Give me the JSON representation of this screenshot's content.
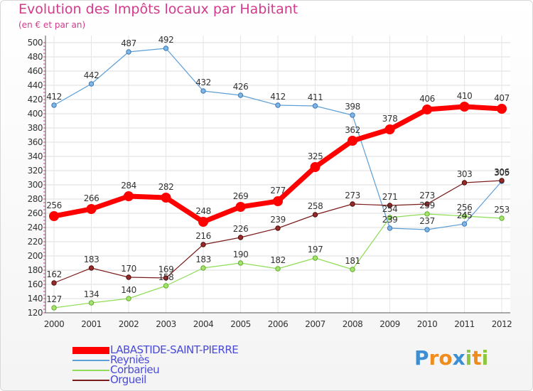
{
  "chart_data": {
    "type": "line",
    "title": "Evolution des Impôts locaux par Habitant",
    "subtitle": "(en € et par an)",
    "xlabel": "",
    "ylabel": "",
    "x": [
      "2000",
      "2001",
      "2002",
      "2003",
      "2004",
      "2005",
      "2006",
      "2007",
      "2008",
      "2009",
      "2010",
      "2011",
      "2012"
    ],
    "ylim": [
      120,
      500
    ],
    "yticks": [
      120,
      140,
      160,
      180,
      200,
      220,
      240,
      260,
      280,
      300,
      320,
      340,
      360,
      380,
      400,
      420,
      440,
      460,
      480,
      500
    ],
    "grid": true,
    "legend_position": "bottom",
    "series": [
      {
        "name": "LABASTIDE-SAINT-PIERRE",
        "color": "#ff0000",
        "values": [
          256,
          266,
          284,
          282,
          248,
          269,
          277,
          325,
          362,
          378,
          406,
          410,
          407
        ],
        "labels": [
          "256",
          "266",
          "284",
          "282",
          "248",
          "269",
          "277",
          "325",
          "362",
          "378",
          "406",
          "410",
          "407"
        ]
      },
      {
        "name": "Reyniès",
        "color": "#5e9fd6",
        "values": [
          412,
          442,
          487,
          492,
          432,
          426,
          412,
          411,
          398,
          239,
          237,
          245,
          305
        ],
        "labels": [
          "412",
          "442",
          "487",
          "492",
          "432",
          "426",
          "412",
          "411",
          "398",
          "239",
          "237",
          "245",
          "305"
        ]
      },
      {
        "name": "Corbarieu",
        "color": "#8fdc56",
        "values": [
          127,
          134,
          140,
          158,
          183,
          190,
          182,
          197,
          181,
          254,
          259,
          256,
          253
        ],
        "labels": [
          "127",
          "134",
          "140",
          "158",
          "183",
          "190",
          "182",
          "197",
          "181",
          "254",
          "259",
          "256",
          "253"
        ]
      },
      {
        "name": "Orgueil",
        "color": "#7b1c1c",
        "values": [
          162,
          183,
          170,
          169,
          216,
          226,
          239,
          258,
          273,
          271,
          273,
          303,
          306
        ],
        "labels": [
          "162",
          "183",
          "170",
          "169",
          "216",
          "226",
          "239",
          "258",
          "273",
          "271",
          "273",
          "303",
          "306"
        ]
      }
    ]
  },
  "logo": {
    "letters": [
      "P",
      "r",
      "o",
      "x",
      "i",
      "t",
      "i"
    ],
    "colors": [
      "#3d8fd4",
      "#f08c1e",
      "#f08c1e",
      "#3d8fd4",
      "#8dc63f",
      "#f08c1e",
      "#8dc63f"
    ]
  }
}
